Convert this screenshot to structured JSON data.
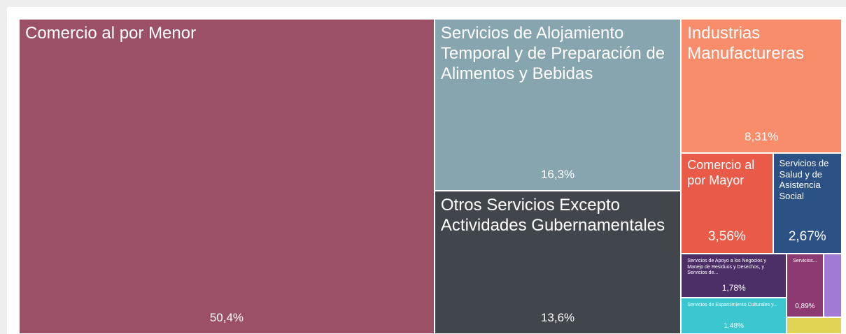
{
  "chart_data": {
    "type": "treemap",
    "categories": [
      "Comercio al por Menor",
      "Servicios de Alojamiento Temporal y de Preparación de Alimentos y Bebidas",
      "Otros Servicios Excepto Actividades Gubernamentales",
      "Industrias Manufactureras",
      "Comercio al por Mayor",
      "Servicios de Salud y de Asistencia Social",
      "Servicios de Apoyo a los Negocios y Manejo de Residuos y Desechos, y Servicios de...",
      "Servicios de Esparcimiento Culturales y...",
      "Servicios...",
      null,
      null
    ],
    "values": [
      50.4,
      16.3,
      13.6,
      8.31,
      3.56,
      2.67,
      1.78,
      1.48,
      0.89,
      0.45,
      0.36
    ],
    "value_labels": [
      "50,4%",
      "16,3%",
      "13,6%",
      "8,31%",
      "3,56%",
      "2,67%",
      "1,78%",
      "1,48%",
      "0,89%",
      null,
      null
    ],
    "colors": [
      "#9b5066",
      "#87a5ae",
      "#40464b",
      "#f98c6a",
      "#ea5a48",
      "#2c5285",
      "#4d2f68",
      "#3cc6d0",
      "#8d3a72",
      "#a07ad6",
      "#e0d253"
    ]
  }
}
